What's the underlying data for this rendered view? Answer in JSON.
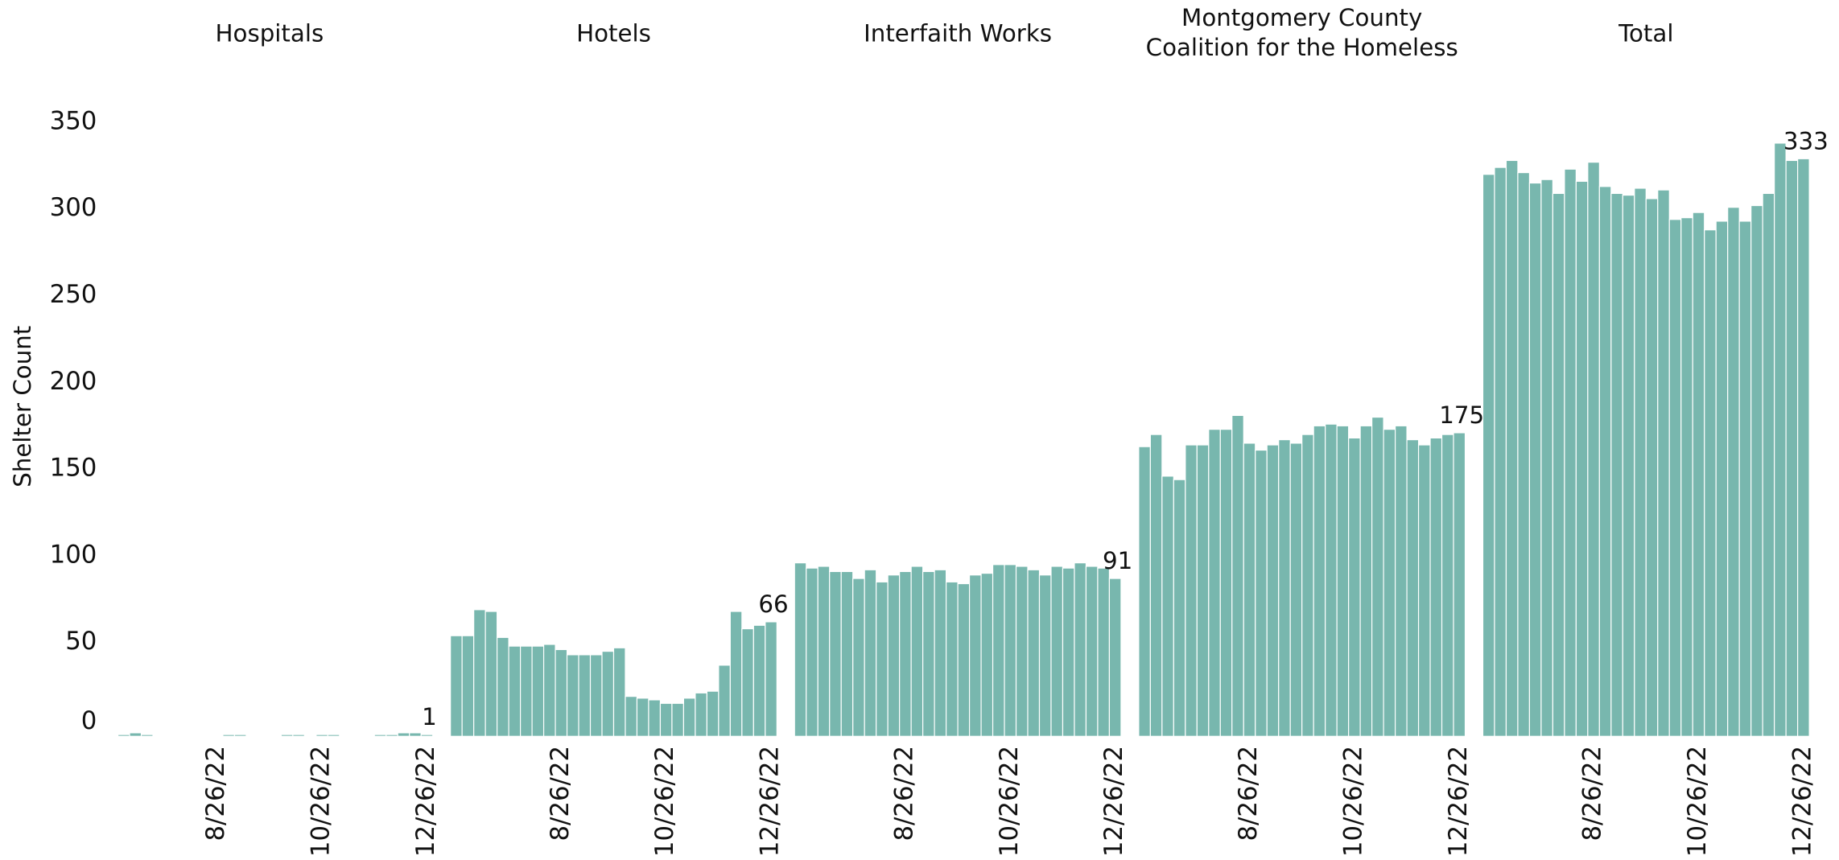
{
  "chart_data": {
    "type": "bar",
    "ylabel": "Shelter Count",
    "ylim": [
      0,
      360
    ],
    "yticks": [
      0,
      50,
      100,
      150,
      200,
      250,
      300,
      350
    ],
    "color": "#78b7ae",
    "categories": [
      null,
      null,
      null,
      null,
      null,
      null,
      null,
      null,
      null,
      "8/26/22",
      null,
      null,
      null,
      null,
      null,
      null,
      null,
      null,
      "10/26/22",
      null,
      null,
      null,
      null,
      null,
      null,
      null,
      null,
      "12/26/22"
    ],
    "series": [
      {
        "name": "Hospitals",
        "values": [
          0,
          1,
          2,
          1,
          0,
          0,
          0,
          0,
          0,
          0,
          1,
          1,
          0,
          0,
          0,
          1,
          1,
          0,
          1,
          1,
          0,
          0,
          0,
          1,
          1,
          2,
          2,
          1
        ]
      },
      {
        "name": "Hotels",
        "values": [
          58,
          58,
          73,
          72,
          57,
          52,
          52,
          52,
          53,
          50,
          47,
          47,
          47,
          49,
          51,
          23,
          22,
          21,
          19,
          19,
          22,
          25,
          26,
          41,
          72,
          62,
          64,
          66
        ]
      },
      {
        "name": "Interfaith Works",
        "values": [
          100,
          97,
          98,
          95,
          95,
          91,
          96,
          89,
          93,
          95,
          98,
          95,
          96,
          89,
          88,
          93,
          94,
          99,
          99,
          98,
          96,
          93,
          98,
          97,
          100,
          98,
          97,
          91
        ]
      },
      {
        "name": "Montgomery County Coalition for the Homeless",
        "values": [
          167,
          174,
          150,
          148,
          168,
          168,
          177,
          177,
          185,
          169,
          165,
          168,
          171,
          169,
          174,
          179,
          180,
          179,
          172,
          179,
          184,
          177,
          179,
          171,
          168,
          172,
          174,
          175
        ]
      },
      {
        "name": "Total",
        "values": [
          324,
          328,
          332,
          325,
          319,
          321,
          313,
          327,
          320,
          331,
          317,
          313,
          312,
          316,
          310,
          315,
          298,
          299,
          302,
          292,
          297,
          305,
          297,
          306,
          313,
          342,
          332,
          333
        ]
      }
    ]
  }
}
